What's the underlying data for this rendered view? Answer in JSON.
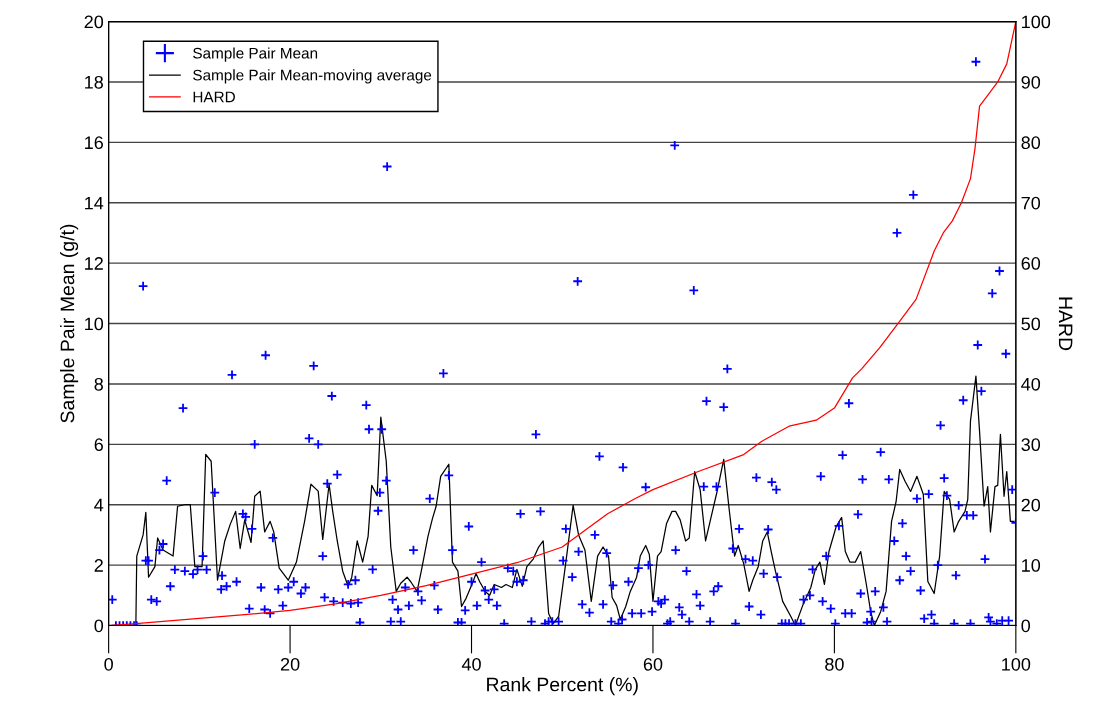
{
  "chart_data": {
    "type": "scatter",
    "xlabel": "Rank Percent (%)",
    "ylabel": "Sample Pair Mean (g/t)",
    "y2label": "HARD",
    "xlim": [
      0,
      100
    ],
    "xticks": [
      0,
      20,
      40,
      60,
      80,
      100
    ],
    "ylim": [
      0,
      20
    ],
    "yticks": [
      0,
      2,
      4,
      6,
      8,
      10,
      12,
      14,
      16,
      18,
      20
    ],
    "y2lim": [
      0,
      100
    ],
    "y2ticks": [
      0,
      10,
      20,
      30,
      40,
      50,
      60,
      70,
      80,
      90,
      100
    ],
    "grid": "y",
    "legend": "top left",
    "marker": "cross",
    "series": [
      {
        "name": "Sample Pair Mean",
        "color": "#0000ff",
        "x": [
          0.4,
          0.8,
          1.2,
          1.6,
          2.0,
          2.4,
          2.8,
          3.1,
          3.8,
          4.1,
          4.4,
          4.7,
          5.3,
          5.6,
          6.0,
          6.4,
          6.8,
          7.3,
          8.2,
          8.4,
          9.3,
          9.8,
          10.4,
          10.8,
          11.7,
          12.4,
          12.5,
          13.0,
          13.6,
          14.1,
          14.8,
          15.1,
          15.5,
          15.8,
          16.1,
          16.8,
          17.3,
          17.2,
          17.8,
          18.1,
          18.7,
          19.2,
          19.8,
          20.4,
          21.2,
          21.7,
          22.1,
          22.6,
          23.1,
          23.6,
          23.8,
          24.1,
          24.6,
          24.8,
          25.2,
          25.8,
          26.4,
          26.7,
          27.2,
          27.5,
          27.7,
          28.4,
          28.7,
          29.1,
          29.7,
          29.9,
          30.1,
          30.7,
          30.6,
          31.1,
          31.3,
          31.9,
          32.2,
          32.7,
          33.1,
          33.6,
          34.1,
          34.5,
          35.4,
          35.9,
          36.3,
          36.9,
          37.5,
          37.9,
          38.5,
          38.9,
          39.3,
          39.7,
          40.0,
          40.6,
          41.1,
          41.5,
          41.9,
          42.5,
          42.8,
          43.6,
          44.0,
          44.6,
          45.0,
          45.4,
          45.7,
          46.6,
          47.1,
          47.6,
          48.1,
          48.5,
          48.9,
          49.6,
          50.1,
          50.4,
          51.1,
          51.7,
          51.8,
          52.2,
          53.0,
          53.6,
          54.1,
          54.5,
          54.9,
          55.4,
          55.6,
          56.2,
          56.6,
          56.7,
          57.3,
          57.7,
          58.4,
          58.7,
          59.2,
          59.5,
          59.9,
          60.6,
          60.9,
          61.3,
          61.6,
          61.9,
          62.4,
          62.5,
          62.9,
          63.2,
          63.7,
          64.0,
          64.5,
          64.8,
          65.2,
          65.6,
          65.9,
          66.3,
          66.7,
          67.0,
          67.2,
          67.8,
          68.2,
          68.8,
          69.1,
          69.5,
          70.2,
          70.6,
          71.0,
          71.4,
          71.9,
          72.2,
          72.7,
          73.1,
          73.6,
          73.7,
          74.2,
          74.6,
          75.0,
          75.7,
          76.3,
          76.6,
          77.3,
          77.6,
          78.5,
          78.7,
          79.1,
          79.6,
          80.1,
          80.5,
          80.9,
          81.2,
          81.6,
          81.9,
          82.6,
          82.9,
          83.1,
          83.6,
          84.0,
          84.1,
          84.5,
          85.1,
          85.4,
          85.8,
          86.0,
          86.6,
          86.9,
          87.2,
          87.5,
          87.9,
          88.4,
          88.7,
          89.1,
          89.5,
          89.9,
          90.4,
          90.7,
          91.0,
          91.4,
          91.7,
          92.1,
          92.4,
          93.2,
          93.4,
          93.7,
          94.2,
          94.6,
          95.0,
          95.3,
          95.6,
          95.8,
          96.2,
          96.6,
          97.0,
          97.2,
          97.4,
          97.9,
          98.2,
          98.5,
          98.9,
          99.2,
          99.6,
          100
        ],
        "values": [
          0.86,
          0,
          0,
          0,
          0,
          0,
          0,
          0,
          11.24,
          2.15,
          2.15,
          0.86,
          0.8,
          2.5,
          2.7,
          4.8,
          1.3,
          1.85,
          7.2,
          1.8,
          1.7,
          1.85,
          2.3,
          1.85,
          4.4,
          1.2,
          1.65,
          1.3,
          8.3,
          1.45,
          3.7,
          3.6,
          0.56,
          3.2,
          6.0,
          1.26,
          8.95,
          0.53,
          0.4,
          2.9,
          1.2,
          0.66,
          1.26,
          1.45,
          1.06,
          1.26,
          6.2,
          8.6,
          6.0,
          2.3,
          0.93,
          4.7,
          7.6,
          0.8,
          5.0,
          0.76,
          1.36,
          0.73,
          1.5,
          0.76,
          0.1,
          7.3,
          6.5,
          1.86,
          3.8,
          4.4,
          6.5,
          15.2,
          4.8,
          0.13,
          0.86,
          0.53,
          0.13,
          1.26,
          0.66,
          2.5,
          1.13,
          0.83,
          4.2,
          1.33,
          0.53,
          8.35,
          4.97,
          2.5,
          0.1,
          0.1,
          0.5,
          3.28,
          1.45,
          0.66,
          2.1,
          1.16,
          0.86,
          1.2,
          0.66,
          0.06,
          1.9,
          1.8,
          1.45,
          3.7,
          1.5,
          0.13,
          6.33,
          3.78,
          0.06,
          0.13,
          0.13,
          0.13,
          2.15,
          3.2,
          1.6,
          11.4,
          2.45,
          0.7,
          0.43,
          3.0,
          5.6,
          0.7,
          2.4,
          0.13,
          1.33,
          0.06,
          0.2,
          5.24,
          1.45,
          0.4,
          1.9,
          0.4,
          4.58,
          2.0,
          0.46,
          0.8,
          0.73,
          0.86,
          0.06,
          0.13,
          15.9,
          2.5,
          0.6,
          0.36,
          1.8,
          0.13,
          11.1,
          1.03,
          0.66,
          4.6,
          7.43,
          0.13,
          1.13,
          4.6,
          1.3,
          7.23,
          8.5,
          2.55,
          0.06,
          3.2,
          2.2,
          0.63,
          2.15,
          4.9,
          0.36,
          1.72,
          3.18,
          4.75,
          4.5,
          1.6,
          0.06,
          0.06,
          0.06,
          0.06,
          0.06,
          0.86,
          1.0,
          1.86,
          4.94,
          0.8,
          2.3,
          0.56,
          0.06,
          3.3,
          5.64,
          0.4,
          7.36,
          0.4,
          3.68,
          1.06,
          4.84,
          0.1,
          0.46,
          0.13,
          1.13,
          5.74,
          0.6,
          0.13,
          4.84,
          2.8,
          13.0,
          1.5,
          3.38,
          2.3,
          1.8,
          14.26,
          4.2,
          1.16,
          0.23,
          4.35,
          0.36,
          0.06,
          2.0,
          6.63,
          4.88,
          4.3,
          0.06,
          1.66,
          3.98,
          7.46,
          3.65,
          0.06,
          3.65,
          18.67,
          9.29,
          7.76,
          2.2,
          0.27,
          0.13,
          11.0,
          0.06,
          11.74,
          0.16,
          9.0,
          0.16,
          4.5,
          3.4
        ]
      },
      {
        "name": "Sample Pair Mean-moving average",
        "type": "line",
        "color": "#000000",
        "marker": "none",
        "x": [
          3.0,
          3.1,
          3.8,
          4.1,
          4.4,
          5.1,
          5.4,
          6.0,
          7.1,
          7.6,
          8.4,
          9.0,
          9.5,
          10.3,
          10.7,
          11.3,
          12.0,
          12.8,
          13.4,
          14.0,
          14.5,
          15.0,
          15.7,
          16.1,
          16.7,
          17.2,
          17.8,
          18.2,
          18.8,
          19.8,
          20.7,
          21.6,
          22.3,
          23.1,
          23.6,
          24.3,
          24.7,
          25.2,
          25.8,
          26.4,
          26.8,
          27.4,
          28.0,
          28.6,
          29.0,
          29.6,
          30.0,
          30.6,
          31.1,
          31.7,
          32.2,
          32.9,
          33.3,
          34.0,
          34.5,
          35.2,
          35.7,
          36.1,
          36.6,
          37.5,
          37.9,
          38.5,
          38.9,
          39.4,
          40.1,
          40.5,
          40.9,
          41.5,
          42.0,
          42.5,
          43.3,
          43.8,
          44.5,
          45.0,
          45.6,
          46.1,
          46.8,
          47.4,
          47.9,
          48.5,
          49.0,
          49.6,
          50.4,
          51.2,
          51.8,
          52.5,
          53.2,
          53.9,
          54.5,
          55.1,
          55.5,
          56.0,
          56.4,
          57.0,
          57.5,
          58.2,
          58.6,
          59.2,
          59.6,
          60.0,
          60.5,
          60.9,
          61.5,
          62.1,
          62.5,
          63.0,
          63.6,
          64.0,
          64.6,
          65.2,
          65.8,
          66.3,
          67.1,
          67.8,
          68.4,
          69.0,
          69.4,
          70.0,
          70.6,
          71.0,
          71.6,
          72.1,
          72.6,
          73.0,
          73.5,
          74.3,
          75.2,
          75.7,
          76.5,
          77.4,
          77.9,
          78.4,
          78.9,
          79.4,
          80.2,
          80.8,
          81.2,
          81.7,
          82.3,
          82.9,
          83.5,
          84.0,
          84.4,
          85.1,
          85.7,
          86.3,
          86.8,
          87.2,
          87.8,
          88.4,
          89.1,
          89.8,
          90.3,
          91.0,
          91.6,
          92.1,
          92.7,
          93.2,
          93.7,
          94.4,
          94.7,
          95.0,
          95.6,
          96.0,
          96.5,
          96.9,
          97.2,
          97.7,
          98.0,
          98.3,
          98.7,
          99.0,
          99.4,
          99.8
        ],
        "values": [
          0,
          2.3,
          3.0,
          3.75,
          1.6,
          1.95,
          2.9,
          2.5,
          2.3,
          3.95,
          4.0,
          4.0,
          1.95,
          1.95,
          5.67,
          5.44,
          1.5,
          2.8,
          3.35,
          3.78,
          2.55,
          3.5,
          2.75,
          4.28,
          4.45,
          3.1,
          3.45,
          3.1,
          1.9,
          1.5,
          2.1,
          3.45,
          4.68,
          4.45,
          2.85,
          4.68,
          3.78,
          2.8,
          1.8,
          1.3,
          1.6,
          2.8,
          2.1,
          2.95,
          4.64,
          4.3,
          6.9,
          5.44,
          2.6,
          1.13,
          1.4,
          1.6,
          1.45,
          1.13,
          1.86,
          2.95,
          3.55,
          3.95,
          4.94,
          5.34,
          2.1,
          1.8,
          0.63,
          0.9,
          1.4,
          1.72,
          1.45,
          1.13,
          1.0,
          1.36,
          1.26,
          1.36,
          1.26,
          1.86,
          1.3,
          1.95,
          2.2,
          2.6,
          2.8,
          0.4,
          0.06,
          0.3,
          2.1,
          3.98,
          3.0,
          2.5,
          0.8,
          2.3,
          2.6,
          2.3,
          0.93,
          0.66,
          0.2,
          0.63,
          1.13,
          1.6,
          2.3,
          2.65,
          2.35,
          0.8,
          2.3,
          2.45,
          3.38,
          3.78,
          3.78,
          3.5,
          2.8,
          2.9,
          5.1,
          4.5,
          2.8,
          3.45,
          4.48,
          5.5,
          3.85,
          2.3,
          2.65,
          2.05,
          1.13,
          1.5,
          1.95,
          2.8,
          3.1,
          2.5,
          1.8,
          0.8,
          0.3,
          0,
          0.66,
          1.26,
          1.86,
          2.1,
          1.36,
          2.45,
          3.28,
          3.58,
          2.45,
          2.1,
          2.1,
          2.45,
          1.4,
          0.46,
          0,
          0.46,
          1.13,
          3.45,
          4.1,
          5.17,
          4.77,
          4.44,
          4.94,
          4.35,
          1.46,
          1.06,
          2.3,
          4.44,
          4.18,
          3.1,
          3.45,
          3.78,
          4.18,
          6.77,
          8.26,
          6.43,
          3.95,
          4.6,
          3.1,
          4.6,
          4.64,
          6.33,
          4.28,
          5.1,
          3.45,
          3.45
        ]
      },
      {
        "name": "HARD",
        "type": "line",
        "axis": "y2",
        "color": "#ff0000",
        "marker": "none",
        "x": [
          0,
          3,
          10,
          15,
          20,
          25,
          30,
          35,
          40,
          45,
          50,
          55,
          58,
          60,
          65,
          70,
          72,
          75,
          78,
          80,
          82,
          83,
          85,
          87,
          89,
          91,
          92,
          93,
          94,
          95,
          95.5,
          96,
          97,
          98,
          99,
          100
        ],
        "values": [
          0,
          0.3,
          1.2,
          1.8,
          2.5,
          3.6,
          5.0,
          6.6,
          8.5,
          10.4,
          13.0,
          18.5,
          21,
          22.5,
          25.5,
          28.3,
          30.5,
          33,
          34,
          36,
          41,
          42.5,
          46,
          50,
          54,
          62,
          65,
          67,
          70,
          74,
          79,
          86,
          88,
          90,
          93,
          100
        ]
      }
    ]
  }
}
